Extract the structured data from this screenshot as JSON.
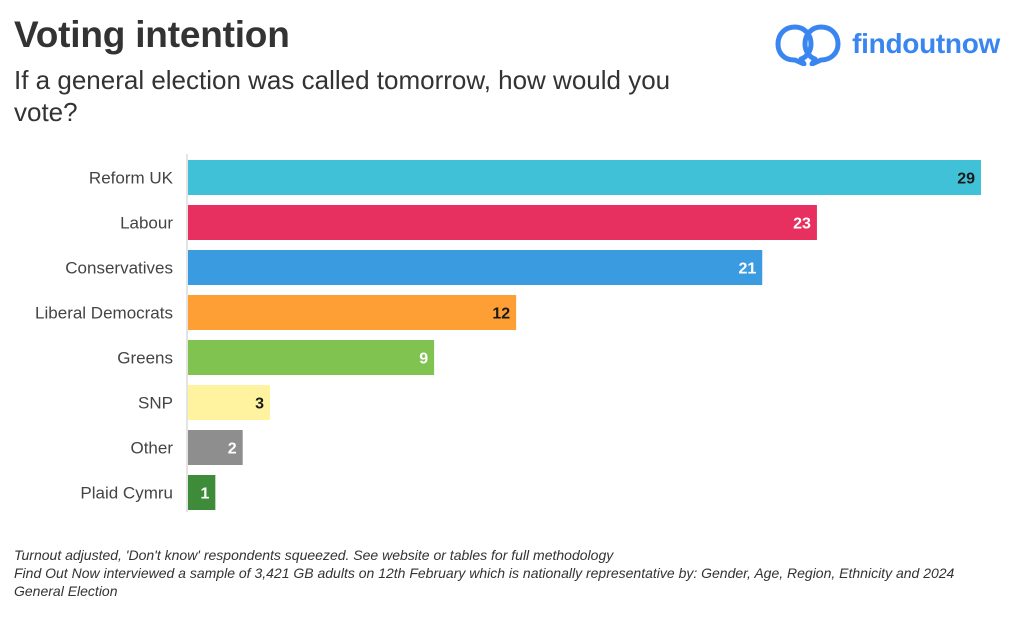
{
  "header": {
    "title": "Voting intention",
    "subtitle": "If a general election was called tomorrow, how would you vote?"
  },
  "brand": {
    "name": "findoutnow",
    "icon": "chat-bubbles-icon",
    "color": "#3a86f0"
  },
  "chart_data": {
    "type": "bar",
    "orientation": "horizontal",
    "title": "Voting intention",
    "subtitle": "If a general election was called tomorrow, how would you vote?",
    "categories": [
      "Reform UK",
      "Labour",
      "Conservatives",
      "Liberal Democrats",
      "Greens",
      "SNP",
      "Other",
      "Plaid Cymru"
    ],
    "values": [
      29,
      23,
      21,
      12,
      9,
      3,
      2,
      1
    ],
    "colors": [
      "#40c1d7",
      "#e73060",
      "#3a9be0",
      "#fd9f34",
      "#80c350",
      "#fff3a0",
      "#8e8e8e",
      "#3e8c3a"
    ],
    "label_colors": [
      "#1a1a1a",
      "#ffffff",
      "#ffffff",
      "#1a1a1a",
      "#ffffff",
      "#1a1a1a",
      "#ffffff",
      "#ffffff"
    ],
    "xlim": [
      0,
      29
    ],
    "data_labels": true,
    "grid": false,
    "legend": "none"
  },
  "footnote": {
    "line1": "Turnout adjusted, 'Don't know' respondents squeezed. See website or tables for full methodology",
    "line2": "Find Out Now interviewed a sample of 3,421 GB adults on 12th February which is nationally representative by: Gender, Age, Region, Ethnicity and 2024 General Election"
  }
}
